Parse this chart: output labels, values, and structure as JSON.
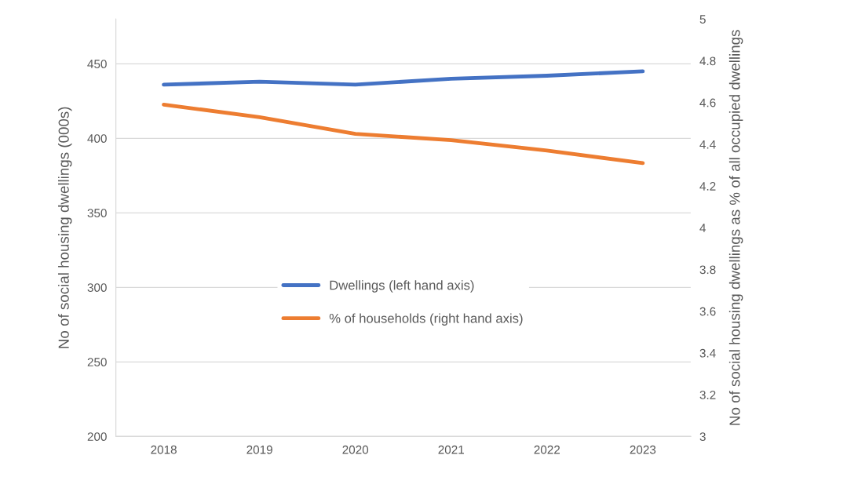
{
  "chart_data": {
    "type": "line",
    "categories": [
      "2018",
      "2019",
      "2020",
      "2021",
      "2022",
      "2023"
    ],
    "ylabel": "No of social housing dwellings (000s)",
    "y2label": "No of social housing dwellings as % of all occupied dwellings",
    "ylim": [
      200,
      480
    ],
    "yticks": [
      200,
      250,
      300,
      350,
      400,
      450
    ],
    "y2lim": [
      3,
      5
    ],
    "y2ticks": [
      3,
      3.2,
      3.4,
      3.6,
      3.8,
      4,
      4.2,
      4.4,
      4.6,
      4.8,
      5
    ],
    "grid": "y",
    "legend": "center",
    "marker": "none",
    "line_style": "solid",
    "series": [
      {
        "name": "Dwellings (left hand axis)",
        "color": "#4472c4",
        "values": [
          436,
          438,
          436,
          440,
          442,
          445
        ]
      },
      {
        "name": "% of households (right hand axis)",
        "color": "#ed7d31",
        "axis": "y2",
        "values": [
          4.59,
          4.53,
          4.45,
          4.42,
          4.37,
          4.31
        ]
      }
    ]
  }
}
